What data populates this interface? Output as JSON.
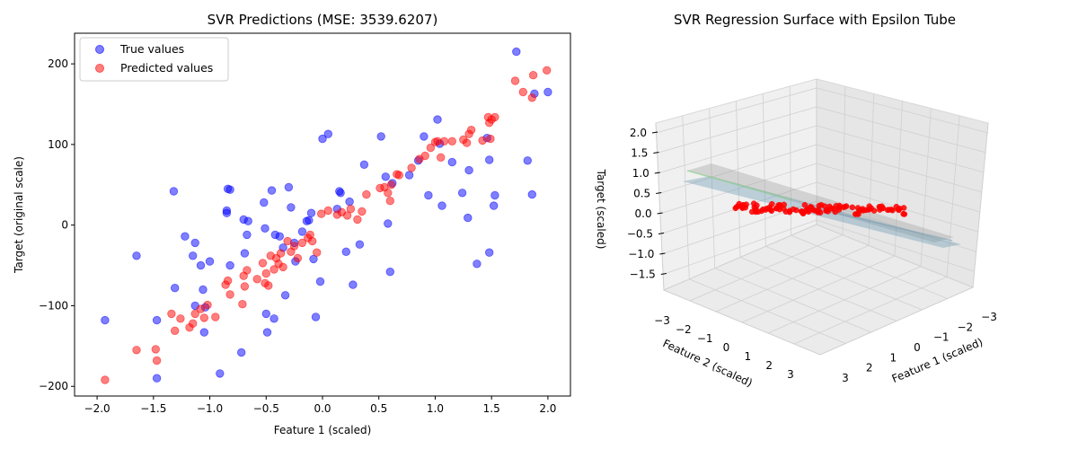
{
  "chart_data": [
    {
      "type": "scatter",
      "title": "SVR Predictions (MSE: 3539.6207)",
      "xlabel": "Feature 1 (scaled)",
      "ylabel": "Target (original scale)",
      "xlim": [
        -2.2,
        2.2
      ],
      "ylim": [
        -212,
        238
      ],
      "xticks": [
        -2.0,
        -1.5,
        -1.0,
        -0.5,
        0.0,
        0.5,
        1.0,
        1.5,
        2.0
      ],
      "xtick_labels": [
        "−2.0",
        "−1.5",
        "−1.0",
        "−0.5",
        "0.0",
        "0.5",
        "1.0",
        "1.5",
        "2.0"
      ],
      "yticks": [
        -200,
        -100,
        0,
        100,
        200
      ],
      "ytick_labels": [
        "−200",
        "−100",
        "0",
        "100",
        "200"
      ],
      "legend_position": "upper-left",
      "series": [
        {
          "name": "True values",
          "color": "#0000ff",
          "points": [
            [
              -1.93,
              -118
            ],
            [
              -1.65,
              -38
            ],
            [
              -1.47,
              -190
            ],
            [
              -1.47,
              -118
            ],
            [
              -1.32,
              42
            ],
            [
              -1.31,
              -78
            ],
            [
              -1.22,
              -14
            ],
            [
              -1.15,
              -38
            ],
            [
              -1.13,
              -22
            ],
            [
              -1.13,
              -100
            ],
            [
              -1.08,
              -50
            ],
            [
              -1.06,
              -80
            ],
            [
              -1.05,
              -133
            ],
            [
              -1.04,
              -102
            ],
            [
              -1.0,
              -45
            ],
            [
              -0.91,
              -184
            ],
            [
              -0.85,
              18
            ],
            [
              -0.85,
              15
            ],
            [
              -0.84,
              45
            ],
            [
              -0.82,
              44
            ],
            [
              -0.82,
              -50
            ],
            [
              -0.72,
              -158
            ],
            [
              -0.7,
              7
            ],
            [
              -0.69,
              -35
            ],
            [
              -0.67,
              -12
            ],
            [
              -0.66,
              5
            ],
            [
              -0.52,
              28
            ],
            [
              -0.51,
              -4
            ],
            [
              -0.5,
              -110
            ],
            [
              -0.49,
              -133
            ],
            [
              -0.45,
              43
            ],
            [
              -0.43,
              -116
            ],
            [
              -0.42,
              -12
            ],
            [
              -0.38,
              -14
            ],
            [
              -0.35,
              -28
            ],
            [
              -0.33,
              -87
            ],
            [
              -0.3,
              47
            ],
            [
              -0.28,
              22
            ],
            [
              -0.25,
              -22
            ],
            [
              -0.24,
              -45
            ],
            [
              -0.18,
              -8
            ],
            [
              -0.14,
              5
            ],
            [
              -0.12,
              6
            ],
            [
              -0.1,
              15
            ],
            [
              -0.08,
              -42
            ],
            [
              -0.06,
              -114
            ],
            [
              -0.02,
              -70
            ],
            [
              0.0,
              107
            ],
            [
              0.05,
              113
            ],
            [
              0.13,
              20
            ],
            [
              0.15,
              42
            ],
            [
              0.16,
              40
            ],
            [
              0.21,
              -33
            ],
            [
              0.24,
              29
            ],
            [
              0.27,
              -74
            ],
            [
              0.33,
              -24
            ],
            [
              0.37,
              75
            ],
            [
              0.52,
              110
            ],
            [
              0.56,
              60
            ],
            [
              0.58,
              2
            ],
            [
              0.6,
              -58
            ],
            [
              0.62,
              52
            ],
            [
              0.77,
              62
            ],
            [
              0.85,
              80
            ],
            [
              0.9,
              110
            ],
            [
              0.94,
              37
            ],
            [
              1.02,
              131
            ],
            [
              1.04,
              101
            ],
            [
              1.06,
              24
            ],
            [
              1.15,
              78
            ],
            [
              1.24,
              40
            ],
            [
              1.29,
              9
            ],
            [
              1.3,
              68
            ],
            [
              1.37,
              -48
            ],
            [
              1.46,
              108
            ],
            [
              1.48,
              -34
            ],
            [
              1.48,
              81
            ],
            [
              1.52,
              24
            ],
            [
              1.53,
              37
            ],
            [
              1.72,
              215
            ],
            [
              1.82,
              80
            ],
            [
              1.86,
              38
            ],
            [
              1.88,
              163
            ],
            [
              2.0,
              165
            ]
          ]
        },
        {
          "name": "Predicted values",
          "color": "#ff0000",
          "points": [
            [
              -1.93,
              -192
            ],
            [
              -1.65,
              -155
            ],
            [
              -1.48,
              -154
            ],
            [
              -1.47,
              -168
            ],
            [
              -1.34,
              -110
            ],
            [
              -1.31,
              -131
            ],
            [
              -1.26,
              -116
            ],
            [
              -1.18,
              -127
            ],
            [
              -1.15,
              -122
            ],
            [
              -1.13,
              -110
            ],
            [
              -1.08,
              -104
            ],
            [
              -1.05,
              -115
            ],
            [
              -1.02,
              -99
            ],
            [
              -0.95,
              -114
            ],
            [
              -0.86,
              -74
            ],
            [
              -0.84,
              -69
            ],
            [
              -0.82,
              -86
            ],
            [
              -0.71,
              -98
            ],
            [
              -0.7,
              -63
            ],
            [
              -0.69,
              -76
            ],
            [
              -0.67,
              -56
            ],
            [
              -0.58,
              -67
            ],
            [
              -0.53,
              -47
            ],
            [
              -0.51,
              -72
            ],
            [
              -0.5,
              -60
            ],
            [
              -0.48,
              -75
            ],
            [
              -0.46,
              -38
            ],
            [
              -0.43,
              -55
            ],
            [
              -0.41,
              -41
            ],
            [
              -0.39,
              -48
            ],
            [
              -0.37,
              -35
            ],
            [
              -0.35,
              -52
            ],
            [
              -0.31,
              -20
            ],
            [
              -0.28,
              -33
            ],
            [
              -0.25,
              -26
            ],
            [
              -0.22,
              -41
            ],
            [
              -0.18,
              -22
            ],
            [
              -0.13,
              -16
            ],
            [
              -0.11,
              -12
            ],
            [
              -0.09,
              -20
            ],
            [
              -0.05,
              -34
            ],
            [
              -0.01,
              14
            ],
            [
              0.05,
              18
            ],
            [
              0.13,
              13
            ],
            [
              0.17,
              16
            ],
            [
              0.22,
              12
            ],
            [
              0.25,
              20
            ],
            [
              0.31,
              7
            ],
            [
              0.35,
              17
            ],
            [
              0.39,
              38
            ],
            [
              0.51,
              46
            ],
            [
              0.55,
              47
            ],
            [
              0.58,
              40
            ],
            [
              0.6,
              30
            ],
            [
              0.61,
              50
            ],
            [
              0.66,
              63
            ],
            [
              0.68,
              62
            ],
            [
              0.79,
              71
            ],
            [
              0.86,
              82
            ],
            [
              0.91,
              86
            ],
            [
              0.96,
              96
            ],
            [
              1.0,
              103
            ],
            [
              1.02,
              104
            ],
            [
              1.05,
              84
            ],
            [
              1.08,
              104
            ],
            [
              1.15,
              104
            ],
            [
              1.25,
              106
            ],
            [
              1.28,
              102
            ],
            [
              1.3,
              113
            ],
            [
              1.32,
              118
            ],
            [
              1.42,
              105
            ],
            [
              1.47,
              134
            ],
            [
              1.48,
              127
            ],
            [
              1.49,
              107
            ],
            [
              1.5,
              131
            ],
            [
              1.53,
              134
            ],
            [
              1.71,
              179
            ],
            [
              1.78,
              165
            ],
            [
              1.86,
              158
            ],
            [
              1.87,
              186
            ],
            [
              1.99,
              192
            ]
          ]
        }
      ]
    },
    {
      "type": "scatter",
      "title": "SVR Regression Surface with Epsilon Tube",
      "xlabel": "Feature 1 (scaled)",
      "ylabel": "Feature 2 (scaled)",
      "zlabel": "Target (scaled)",
      "z_ticks": [
        2.0,
        1.5,
        1.0,
        0.5,
        0.0,
        -0.5,
        -1.0,
        -1.5
      ],
      "z_tick_labels": [
        "2.0",
        "1.5",
        "1.0",
        "0.5",
        "0.0",
        "−0.5",
        "−1.0",
        "−1.5"
      ],
      "feature1_ticks": [
        "−3",
        "−2",
        "−1",
        "0",
        "1",
        "2",
        "3"
      ],
      "feature2_ticks": [
        "−3",
        "−2",
        "−1",
        "0",
        "1",
        "2",
        "3"
      ],
      "surface_colors": {
        "surface": "#5b8fa8",
        "tube_upper": "#8fd18f",
        "tube_lower": "#b0b0b0"
      },
      "points_color": "#ff0000"
    }
  ]
}
